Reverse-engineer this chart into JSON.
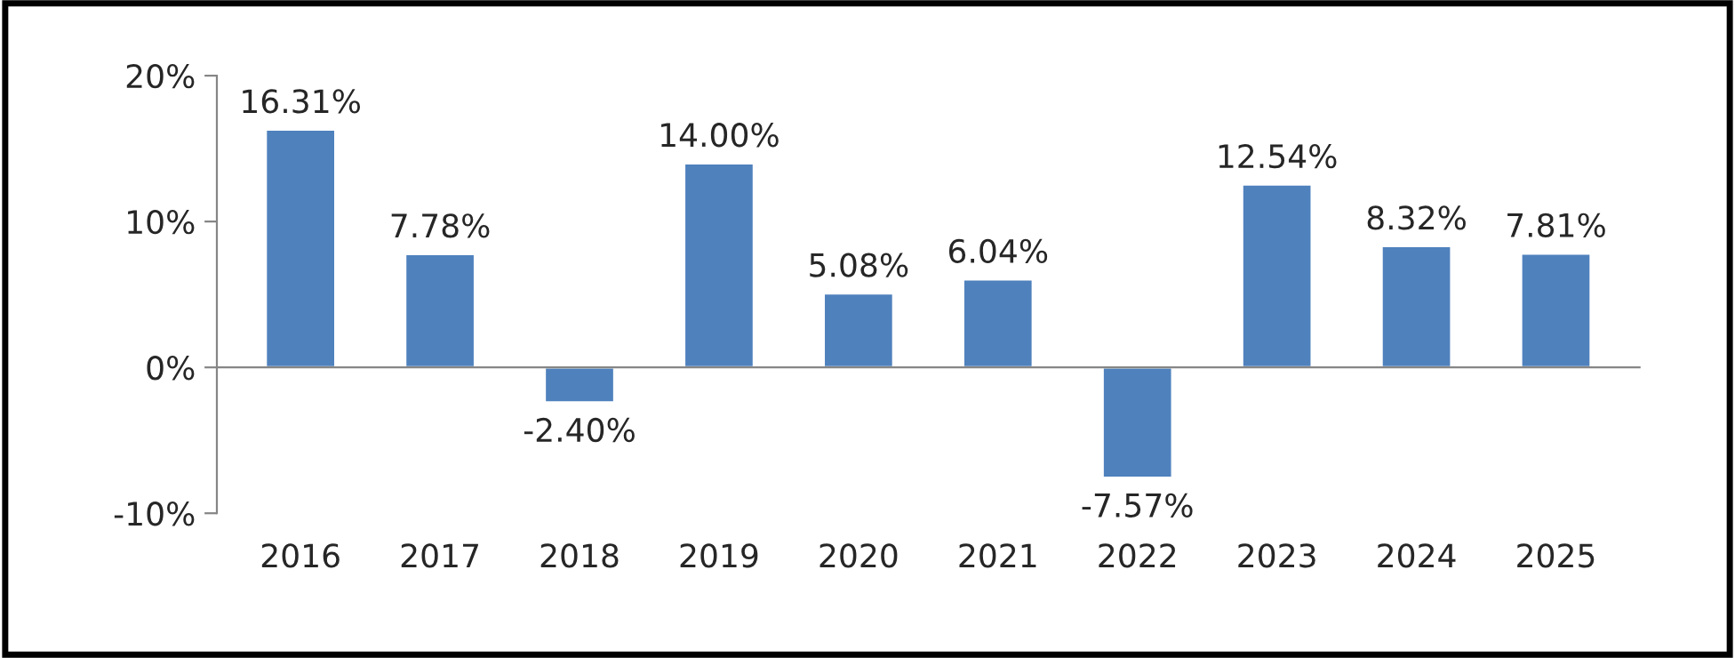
{
  "chart_data": {
    "type": "bar",
    "categories": [
      "2016",
      "2017",
      "2018",
      "2019",
      "2020",
      "2021",
      "2022",
      "2023",
      "2024",
      "2025"
    ],
    "values": [
      16.31,
      7.78,
      -2.4,
      14.0,
      5.08,
      6.04,
      -7.57,
      12.54,
      8.32,
      7.81
    ],
    "value_labels": [
      "16.31%",
      "7.78%",
      "-2.40%",
      "14.00%",
      "5.08%",
      "6.04%",
      "-7.57%",
      "12.54%",
      "8.32%",
      "7.81%"
    ],
    "color": "#4f81bd",
    "ylim": [
      -10,
      20
    ],
    "yticks": [
      {
        "value": -10,
        "label": "-10%"
      },
      {
        "value": 0,
        "label": "0%"
      },
      {
        "value": 10,
        "label": "10%"
      },
      {
        "value": 20,
        "label": "20%"
      }
    ],
    "legend": false
  }
}
